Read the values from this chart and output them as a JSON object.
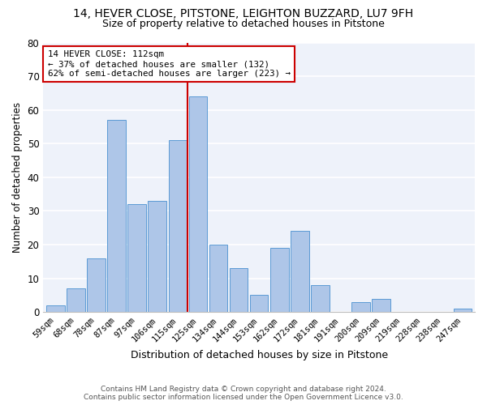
{
  "title": "14, HEVER CLOSE, PITSTONE, LEIGHTON BUZZARD, LU7 9FH",
  "subtitle": "Size of property relative to detached houses in Pitstone",
  "xlabel": "Distribution of detached houses by size in Pitstone",
  "ylabel": "Number of detached properties",
  "categories": [
    "59sqm",
    "68sqm",
    "78sqm",
    "87sqm",
    "97sqm",
    "106sqm",
    "115sqm",
    "125sqm",
    "134sqm",
    "144sqm",
    "153sqm",
    "162sqm",
    "172sqm",
    "181sqm",
    "191sqm",
    "200sqm",
    "209sqm",
    "219sqm",
    "228sqm",
    "238sqm",
    "247sqm"
  ],
  "values": [
    2,
    7,
    16,
    57,
    32,
    33,
    51,
    64,
    20,
    13,
    5,
    19,
    24,
    8,
    0,
    3,
    4,
    0,
    0,
    0,
    1
  ],
  "bar_color": "#aec6e8",
  "bar_edge_color": "#5b9bd5",
  "vline_x": 6.5,
  "vline_color": "#cc0000",
  "annotation_line1": "14 HEVER CLOSE: 112sqm",
  "annotation_line2": "← 37% of detached houses are smaller (132)",
  "annotation_line3": "62% of semi-detached houses are larger (223) →",
  "annotation_box_color": "#cc0000",
  "ylim": [
    0,
    80
  ],
  "yticks": [
    0,
    10,
    20,
    30,
    40,
    50,
    60,
    70,
    80
  ],
  "footer1": "Contains HM Land Registry data © Crown copyright and database right 2024.",
  "footer2": "Contains public sector information licensed under the Open Government Licence v3.0.",
  "bg_color": "#eef2fa",
  "title_fontsize": 10,
  "subtitle_fontsize": 9
}
